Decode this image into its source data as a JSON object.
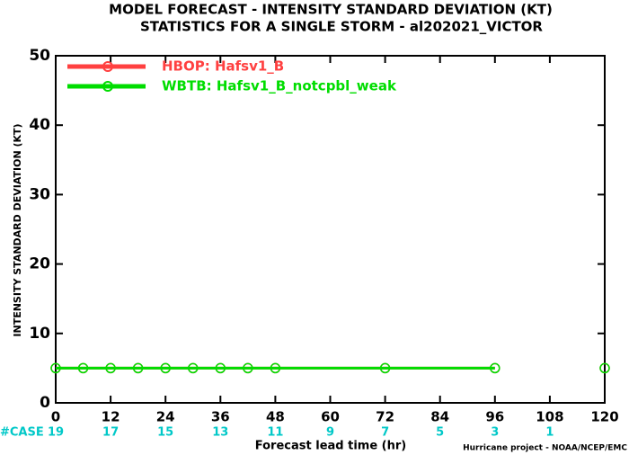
{
  "chart_data": {
    "type": "line",
    "title": "MODEL FORECAST - INTENSITY STANDARD DEVIATION (KT)",
    "subtitle": "STATISTICS FOR A SINGLE STORM - al202021_VICTOR",
    "x_label": "Forecast lead time (hr)",
    "y_label": "INTENSITY STANDARD DEVIATION (KT)",
    "credit": "Hurricane project - NOAA/NCEP/EMC",
    "x": [
      0,
      6,
      12,
      18,
      24,
      30,
      36,
      42,
      48,
      72,
      96,
      108,
      120
    ],
    "series": [
      {
        "name": "HBOP: Hafsv1_B",
        "color": "#ff4040",
        "values": [
          5,
          5,
          5,
          5,
          5,
          5,
          5,
          5,
          5,
          5,
          5,
          null,
          5
        ]
      },
      {
        "name": "WBTB: Hafsv1_B_notcpbl_weak",
        "color": "#00dd00",
        "values": [
          5,
          5,
          5,
          5,
          5,
          5,
          5,
          5,
          5,
          5,
          5,
          null,
          5
        ]
      }
    ],
    "xlim": [
      0,
      120
    ],
    "xticks": [
      0,
      12,
      24,
      36,
      48,
      60,
      72,
      84,
      96,
      108,
      120
    ],
    "ylim": [
      0,
      50
    ],
    "yticks": [
      0,
      10,
      20,
      30,
      40,
      50
    ],
    "case_label": "#CASE",
    "case_counts": [
      "19",
      "17",
      "15",
      "13",
      "11",
      "9",
      "7",
      "5",
      "3",
      "1"
    ],
    "case_color": "#00c8c8"
  }
}
